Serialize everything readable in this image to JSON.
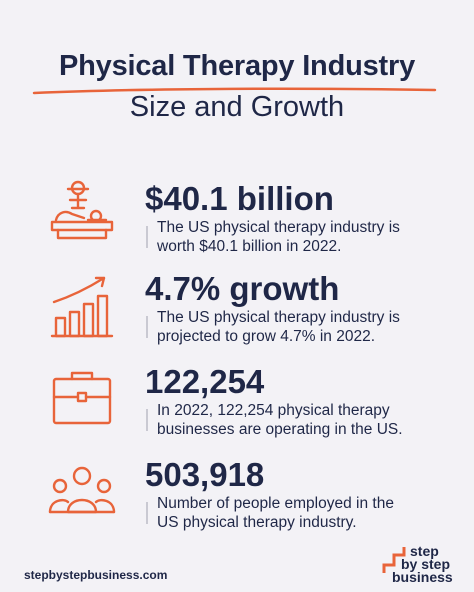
{
  "header": {
    "title": "Physical Therapy Industry",
    "subtitle": "Size and Growth"
  },
  "colors": {
    "accent": "#e8643a",
    "navy": "#1f2747",
    "background": "#f3f2f6"
  },
  "stats": [
    {
      "icon": "massage-table-icon",
      "value": "$40.1 billion",
      "desc_line1": "The US physical therapy industry is",
      "desc_line2": "worth $40.1 billion in 2022."
    },
    {
      "icon": "growth-bar-chart-icon",
      "value": "4.7% growth",
      "desc_line1": "The US physical therapy industry is",
      "desc_line2": "projected to grow 4.7% in 2022."
    },
    {
      "icon": "briefcase-icon",
      "value": "122,254",
      "desc_line1": "In 2022, 122,254 physical therapy",
      "desc_line2": "businesses are operating in the US."
    },
    {
      "icon": "people-group-icon",
      "value": "503,918",
      "desc_line1": "Number of people employed in the",
      "desc_line2": "US physical therapy industry."
    }
  ],
  "footer": {
    "url": "stepbystepbusiness.com",
    "logo_line1": "step",
    "logo_line2": "by step",
    "logo_line3": "business"
  }
}
